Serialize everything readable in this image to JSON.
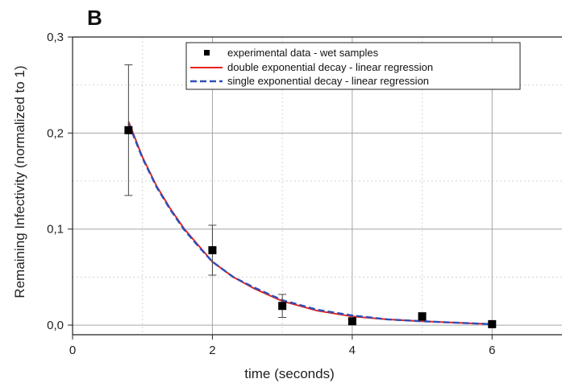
{
  "chart_data": {
    "type": "line",
    "panel_label": "B",
    "xlabel": "time (seconds)",
    "ylabel": "Remaining Infectivity (normalized to 1)",
    "xlim": [
      0,
      7
    ],
    "ylim": [
      -0.01,
      0.3
    ],
    "x_ticks": [
      0,
      2,
      4,
      6
    ],
    "x_tick_labels": [
      "0",
      "2",
      "4",
      "6"
    ],
    "y_ticks": [
      0.0,
      0.1,
      0.2,
      0.3
    ],
    "y_tick_labels": [
      "0,0",
      "0,1",
      "0,2",
      "0,3"
    ],
    "grid": true,
    "legend_position": "top-right",
    "series": [
      {
        "name": "experimental data - wet samples",
        "kind": "scatter",
        "color": "#000000",
        "x": [
          0.8,
          2,
          3,
          4,
          5,
          6
        ],
        "y": [
          0.203,
          0.078,
          0.02,
          0.004,
          0.009,
          0.001
        ],
        "error": [
          0.068,
          0.026,
          0.012,
          0.003,
          0.004,
          0.0
        ]
      },
      {
        "name": "double exponential decay - linear regression",
        "kind": "line",
        "color": "#e8231c",
        "dash": "solid",
        "x": [
          0.8,
          1.0,
          1.2,
          1.4,
          1.6,
          1.8,
          2.0,
          2.3,
          2.6,
          3.0,
          3.5,
          4.0,
          4.5,
          5.0,
          5.5,
          6.0
        ],
        "y": [
          0.212,
          0.175,
          0.145,
          0.121,
          0.1,
          0.083,
          0.066,
          0.05,
          0.038,
          0.025,
          0.015,
          0.009,
          0.006,
          0.004,
          0.0025,
          0.001
        ]
      },
      {
        "name": "single exponential decay - linear regression",
        "kind": "line",
        "color": "#2d4fb8",
        "dash": "dashed",
        "x": [
          0.8,
          1.0,
          1.2,
          1.4,
          1.6,
          1.8,
          2.0,
          2.3,
          2.6,
          3.0,
          3.5,
          4.0,
          4.5,
          5.0,
          5.5,
          6.0
        ],
        "y": [
          0.21,
          0.174,
          0.144,
          0.12,
          0.099,
          0.082,
          0.066,
          0.05,
          0.039,
          0.026,
          0.016,
          0.01,
          0.006,
          0.004,
          0.0025,
          0.001
        ]
      }
    ],
    "colors": {
      "axis": "#222222",
      "grid_major": "#a6a6a6",
      "grid_minor": "#d4d4d4"
    }
  }
}
